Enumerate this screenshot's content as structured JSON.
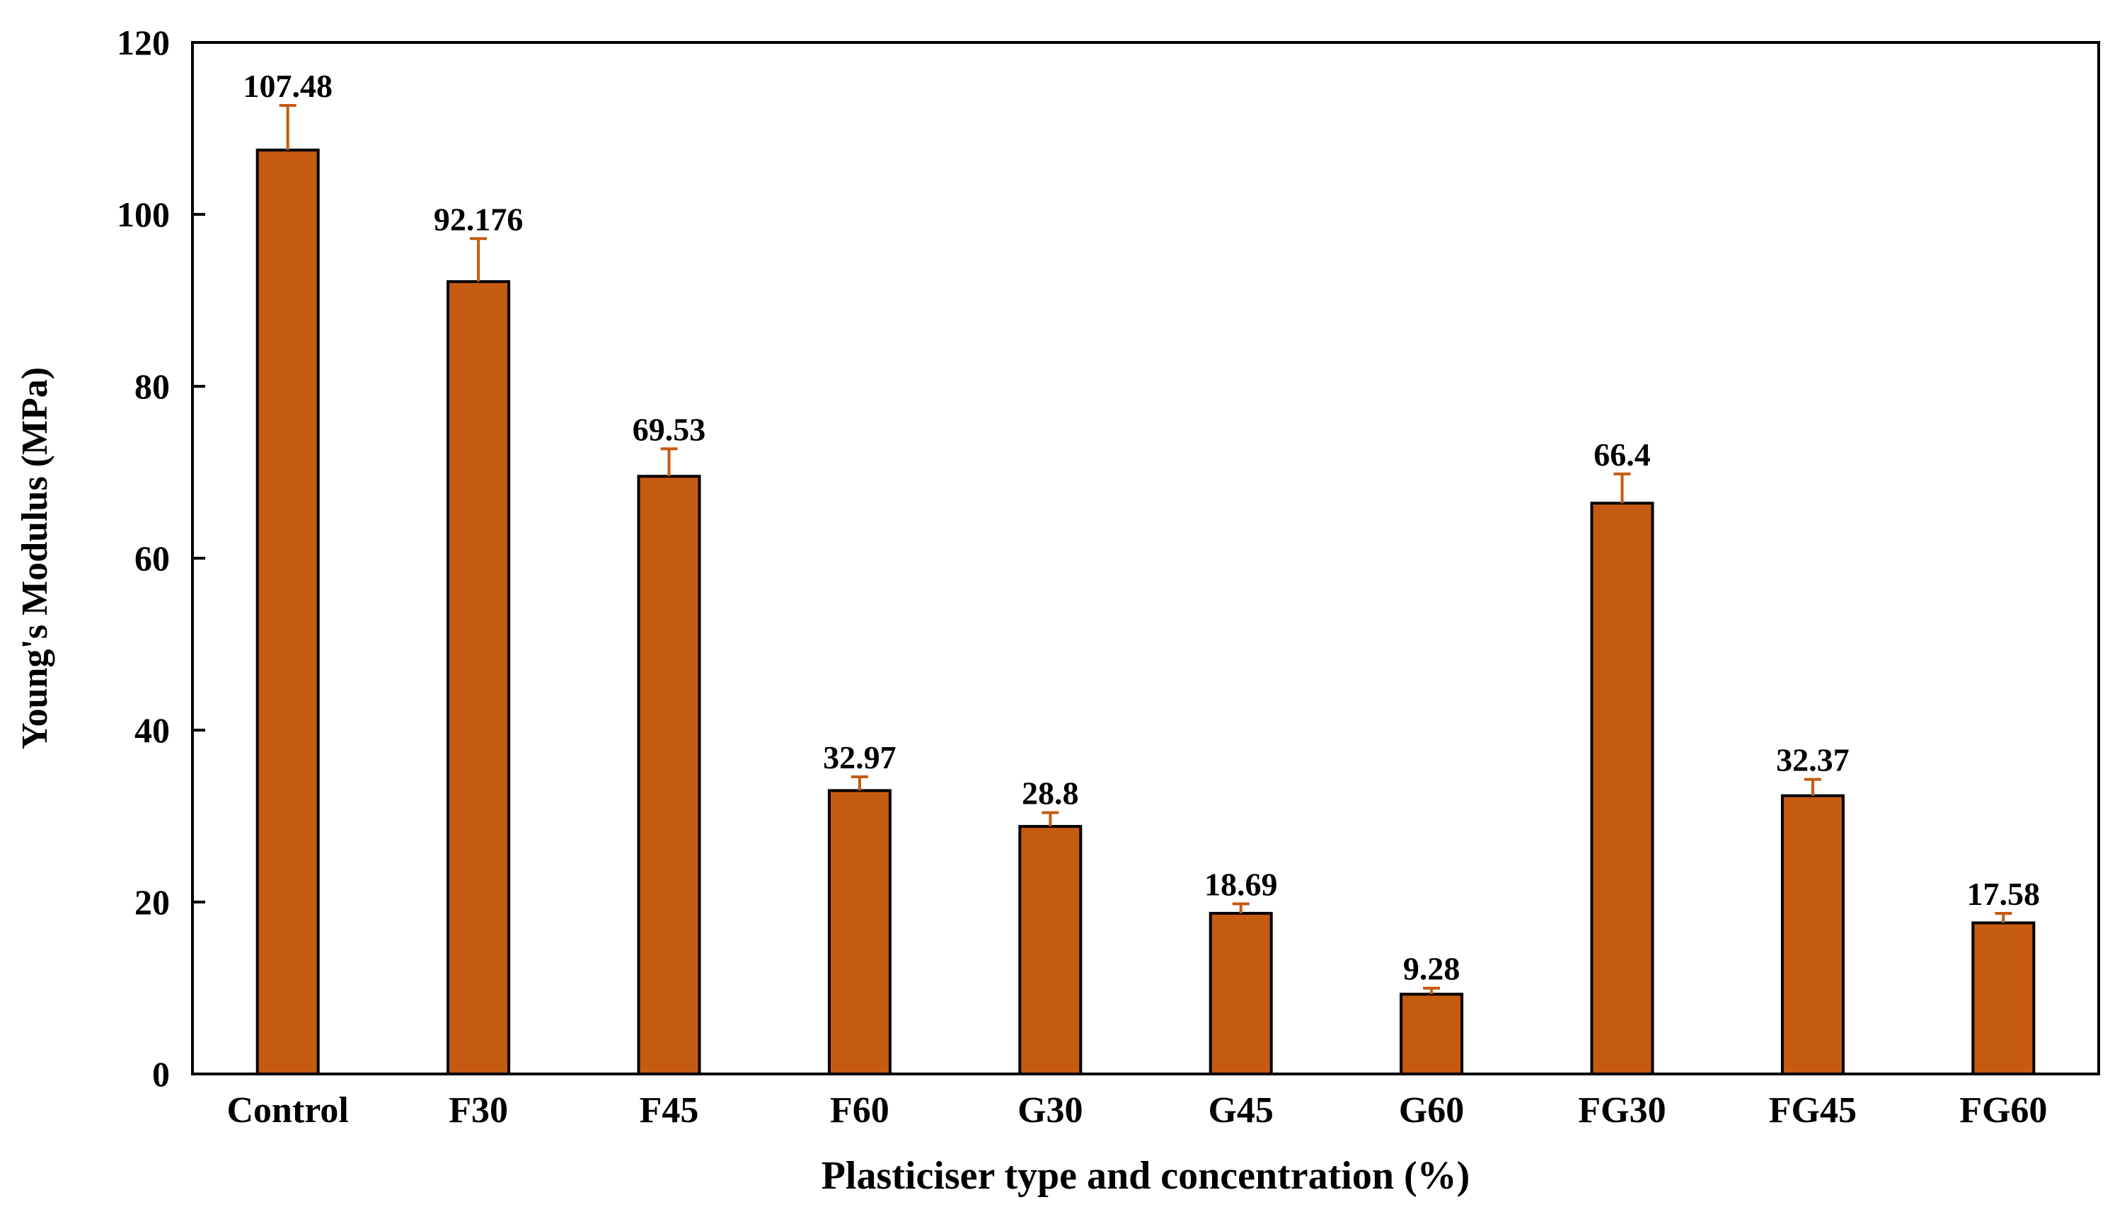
{
  "chart_data": {
    "type": "bar",
    "title": "",
    "xlabel": "Plasticiser type and concentration (%)",
    "ylabel": "Young's Modulus (MPa)",
    "ylim": [
      0,
      120
    ],
    "yticks": [
      0,
      20,
      40,
      60,
      80,
      100,
      120
    ],
    "categories": [
      "Control",
      "F30",
      "F45",
      "F60",
      "G30",
      "G45",
      "G60",
      "FG30",
      "FG45",
      "FG60"
    ],
    "values": [
      107.48,
      92.176,
      69.53,
      32.97,
      28.8,
      18.69,
      9.28,
      66.4,
      32.37,
      17.58
    ],
    "value_labels": [
      "107.48",
      "92.176",
      "69.53",
      "32.97",
      "28.8",
      "18.69",
      "9.28",
      "66.4",
      "32.37",
      "17.58"
    ],
    "error_upper": [
      5.2,
      5.0,
      3.2,
      1.6,
      1.6,
      1.1,
      0.7,
      3.4,
      1.9,
      1.1
    ],
    "grid": false,
    "legend": "none",
    "bar_color": "#C55A11",
    "error_bar_color": "#C55A11"
  }
}
